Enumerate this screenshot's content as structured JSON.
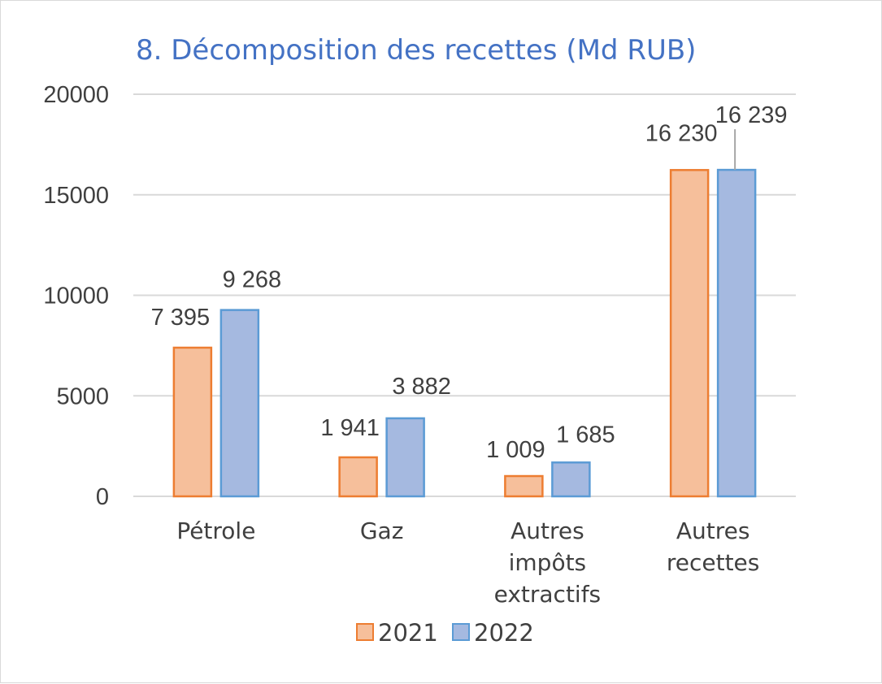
{
  "chart_data": {
    "type": "bar",
    "title": "8. Décomposition des recettes (Md RUB)",
    "categories": [
      [
        "Pétrole"
      ],
      [
        "Gaz"
      ],
      [
        "Autres",
        "impôts",
        "extractifs"
      ],
      [
        "Autres",
        "recettes"
      ]
    ],
    "series": [
      {
        "name": "2021",
        "values": [
          7395,
          1941,
          1009,
          16230
        ],
        "labels": [
          "7 395",
          "1 941",
          "1 009",
          "16 230"
        ],
        "fill": "#f6bf9b",
        "stroke": "#ed7d31"
      },
      {
        "name": "2022",
        "values": [
          9268,
          3882,
          1685,
          16239
        ],
        "labels": [
          "9 268",
          "3 882",
          "1 685",
          "16 239"
        ],
        "fill": "#a5b9e0",
        "stroke": "#5b9bd5"
      }
    ],
    "ylim": [
      0,
      20000
    ],
    "yticks": [
      "0",
      "5000",
      "10000",
      "15000",
      "20000"
    ],
    "grid": true,
    "legend_position": "bottom",
    "colors": {
      "title": "#4472c4",
      "axis_text": "#404040",
      "gridline": "#d9d9d9"
    }
  }
}
